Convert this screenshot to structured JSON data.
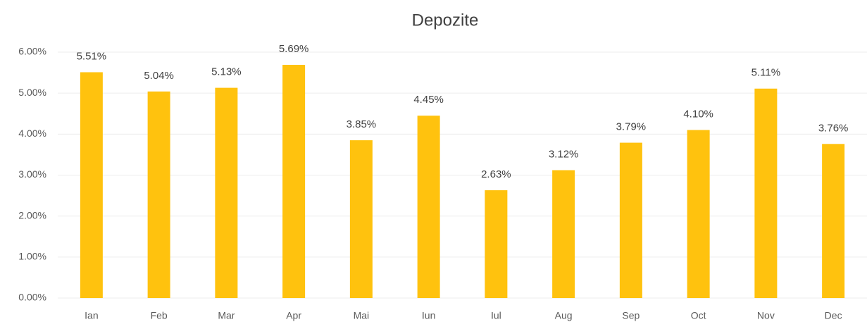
{
  "chart_data": {
    "type": "bar",
    "title": "Depozite",
    "categories": [
      "Ian",
      "Feb",
      "Mar",
      "Apr",
      "Mai",
      "Iun",
      "Iul",
      "Aug",
      "Sep",
      "Oct",
      "Nov",
      "Dec"
    ],
    "values": [
      5.51,
      5.04,
      5.13,
      5.69,
      3.85,
      4.45,
      2.63,
      3.12,
      3.79,
      4.1,
      5.11,
      3.76
    ],
    "value_labels": [
      "5.51%",
      "5.04%",
      "5.13%",
      "5.69%",
      "3.85%",
      "4.45%",
      "2.63%",
      "3.12%",
      "3.79%",
      "4.10%",
      "5.11%",
      "3.76%"
    ],
    "color": "#ffc20e",
    "ylim": [
      0,
      6
    ],
    "yticks": [
      {
        "value": 0,
        "label": "0.00%"
      },
      {
        "value": 1,
        "label": "1.00%"
      },
      {
        "value": 2,
        "label": "2.00%"
      },
      {
        "value": 3,
        "label": "3.00%"
      },
      {
        "value": 4,
        "label": "4.00%"
      },
      {
        "value": 5,
        "label": "5.00%"
      },
      {
        "value": 6,
        "label": "6.00%"
      }
    ],
    "grid": true
  }
}
